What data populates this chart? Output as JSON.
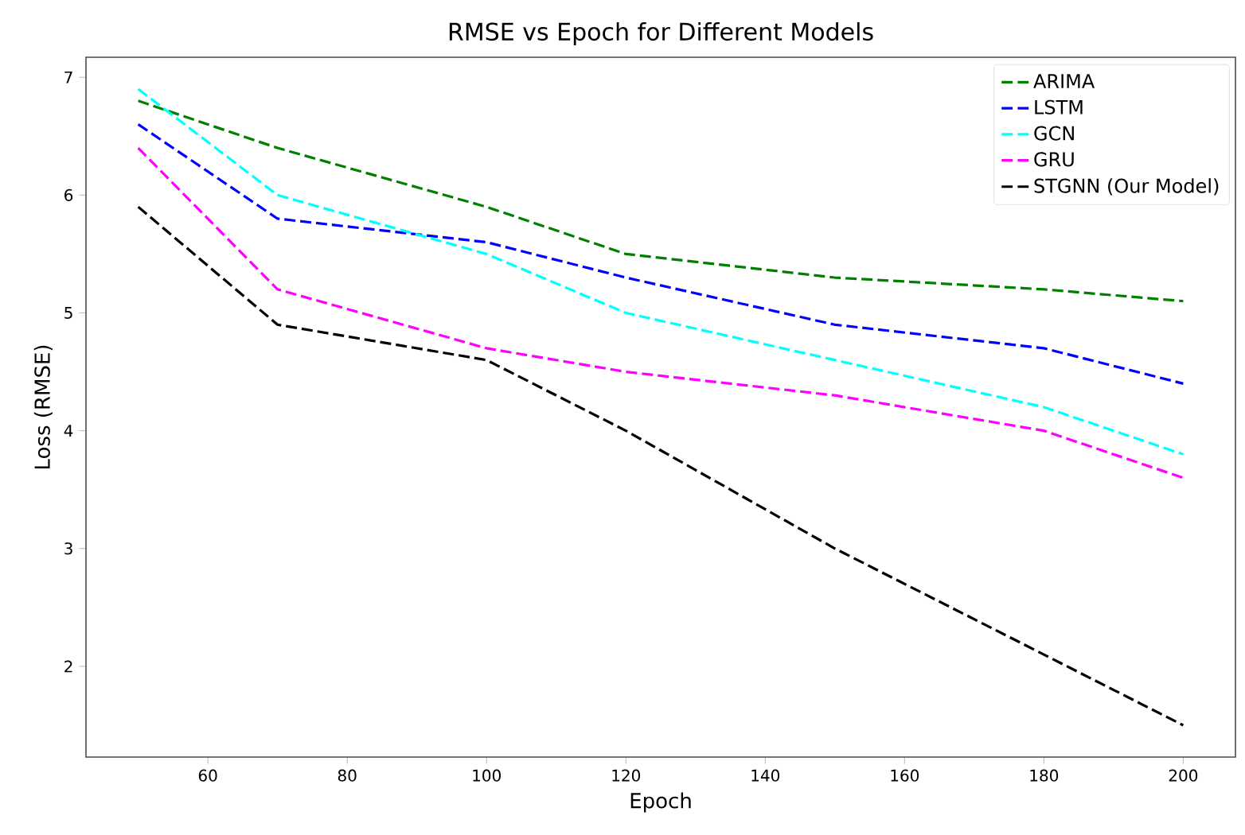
{
  "chart_data": {
    "type": "line",
    "title": "RMSE vs Epoch for Different Models",
    "xlabel": "Epoch",
    "ylabel": "Loss (RMSE)",
    "x": [
      50,
      70,
      100,
      120,
      150,
      180,
      200
    ],
    "series": [
      {
        "name": "ARIMA",
        "color": "#008000",
        "values": [
          6.8,
          6.4,
          5.9,
          5.5,
          5.3,
          5.2,
          5.1
        ]
      },
      {
        "name": "LSTM",
        "color": "#0000ff",
        "values": [
          6.6,
          5.8,
          5.6,
          5.3,
          4.9,
          4.7,
          4.4
        ]
      },
      {
        "name": "GCN",
        "color": "#00ffff",
        "values": [
          6.9,
          6.0,
          5.5,
          5.0,
          4.6,
          4.2,
          3.8
        ]
      },
      {
        "name": "GRU",
        "color": "#ff00ff",
        "values": [
          6.4,
          5.2,
          4.7,
          4.5,
          4.3,
          4.0,
          3.6
        ]
      },
      {
        "name": "STGNN (Our Model)",
        "color": "#000000",
        "values": [
          5.9,
          4.9,
          4.6,
          4.0,
          3.0,
          2.1,
          1.5
        ]
      }
    ],
    "xlim": [
      42.5,
      207.5
    ],
    "ylim": [
      1.23,
      7.17
    ],
    "xticks": [
      60,
      80,
      100,
      120,
      140,
      160,
      180,
      200
    ],
    "yticks": [
      2,
      3,
      4,
      5,
      6,
      7
    ],
    "line_style": "dashed",
    "legend": "top right"
  }
}
